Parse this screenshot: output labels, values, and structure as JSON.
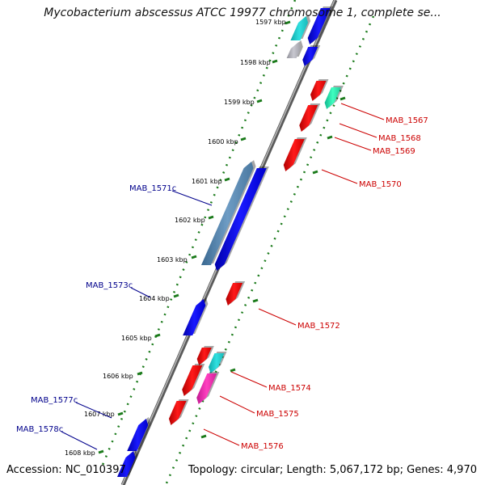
{
  "title": "Mycobacterium abscessus ATCC 19977 chromosome 1, complete se...",
  "footer": {
    "accession": "Accession: NC_010397",
    "topology": "Topology: circular; Length: 5,067,172 bp; Genes: 4,970"
  },
  "colors": {
    "reverse_label": "#00008b",
    "forward_label": "#cc0000",
    "tick_dots": "#1a7a1a",
    "backbone": "#8a8a8a"
  },
  "ticks": [
    {
      "label": "1597 kbp"
    },
    {
      "label": "1598 kbp"
    },
    {
      "label": "1599 kbp"
    },
    {
      "label": "1600 kbp"
    },
    {
      "label": "1601 kbp"
    },
    {
      "label": "1602 kbp"
    },
    {
      "label": "1603 kbp"
    },
    {
      "label": "1604 kbp"
    },
    {
      "label": "1605 kbp"
    },
    {
      "label": "1606 kbp"
    },
    {
      "label": "1607 kbp"
    },
    {
      "label": "1608 kbp"
    }
  ],
  "genes": [
    {
      "id": "g-top-cyan",
      "label": "",
      "strand": "reverse",
      "color": "cyan"
    },
    {
      "id": "g-top-blue",
      "label": "",
      "strand": "forward",
      "color": "blue"
    },
    {
      "id": "g-grey",
      "label": "",
      "strand": "reverse",
      "color": "grey"
    },
    {
      "id": "g-blue-small",
      "label": "",
      "strand": "forward",
      "color": "blue"
    },
    {
      "id": "MAB_1567",
      "label": "MAB_1567",
      "strand": "forward",
      "color": "teal"
    },
    {
      "id": "MAB_1568",
      "label": "MAB_1568",
      "strand": "forward",
      "color": "red"
    },
    {
      "id": "MAB_1569",
      "label": "MAB_1569",
      "strand": "forward",
      "color": "red"
    },
    {
      "id": "MAB_1570",
      "label": "MAB_1570",
      "strand": "forward",
      "color": "red"
    },
    {
      "id": "MAB_1571c",
      "label": "MAB_1571c",
      "strand": "reverse",
      "color": "steel"
    },
    {
      "id": "g-long-blue",
      "label": "",
      "strand": "forward",
      "color": "blue"
    },
    {
      "id": "MAB_1572",
      "label": "MAB_1572",
      "strand": "forward",
      "color": "red"
    },
    {
      "id": "MAB_1573c",
      "label": "MAB_1573c",
      "strand": "reverse",
      "color": "blue"
    },
    {
      "id": "MAB_1574",
      "label": "MAB_1574",
      "strand": "forward",
      "color": "cyan"
    },
    {
      "id": "MAB_1575",
      "label": "MAB_1575",
      "strand": "forward",
      "color": "magenta"
    },
    {
      "id": "MAB_1576",
      "label": "MAB_1576",
      "strand": "forward",
      "color": "red"
    },
    {
      "id": "g-red-lower",
      "label": "",
      "strand": "forward",
      "color": "red"
    },
    {
      "id": "MAB_1577c",
      "label": "MAB_1577c",
      "strand": "reverse",
      "color": "blue"
    },
    {
      "id": "MAB_1578c",
      "label": "MAB_1578c",
      "strand": "reverse",
      "color": "blue"
    }
  ]
}
